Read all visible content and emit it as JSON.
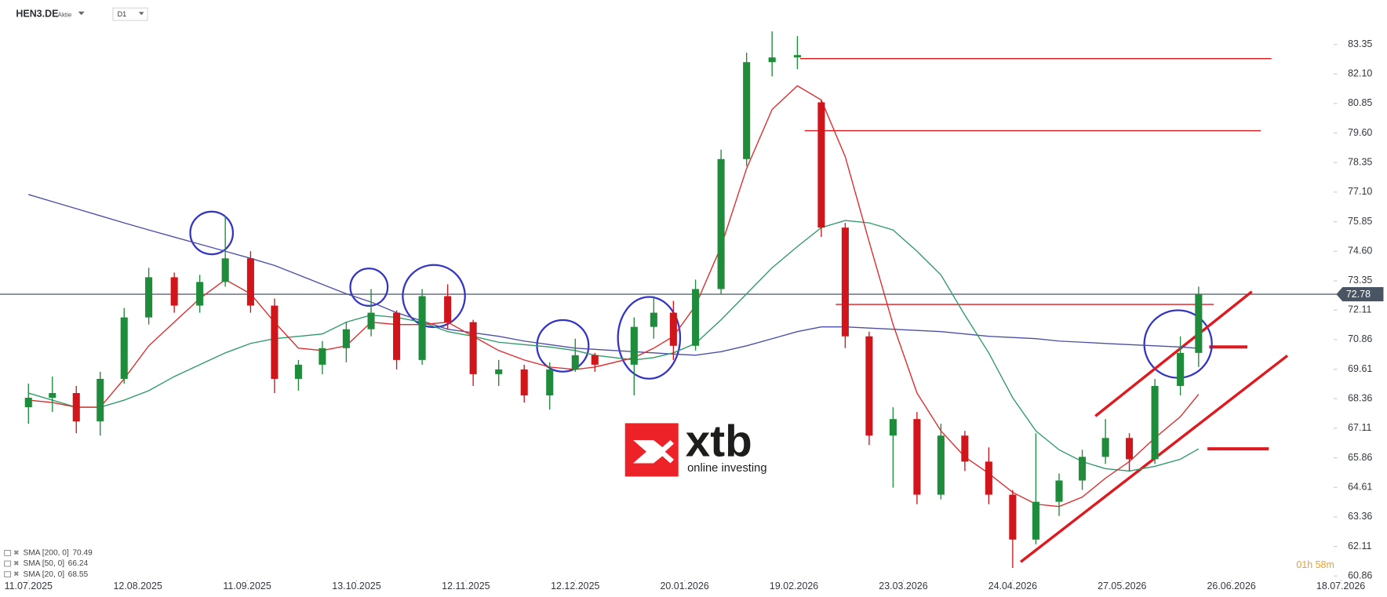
{
  "header": {
    "symbol": "HEN3.DE",
    "kind": "Aktie",
    "interval": "D1"
  },
  "logo": {
    "brand": "xtb",
    "tagline": "online investing"
  },
  "countdown": "01h 58m",
  "chart_data": {
    "type": "candlestick",
    "up_color": "#1e8c3a",
    "down_color": "#d0161b",
    "x": [
      "11.07.2025",
      "18.07.2025",
      "25.07.2025",
      "01.08.2025",
      "08.08.2025",
      "15.08.2025",
      "22.08.2025",
      "29.08.2025",
      "05.09.2025",
      "12.09.2025",
      "19.09.2025",
      "26.09.2025",
      "03.10.2025",
      "10.10.2025",
      "17.10.2025",
      "24.10.2025",
      "31.10.2025",
      "07.11.2025",
      "14.11.2025",
      "21.11.2025",
      "28.11.2025",
      "05.12.2025",
      "12.12.2025",
      "19.12.2025",
      "02.01.2026",
      "09.01.2026",
      "16.01.2026",
      "23.01.2026",
      "30.01.2026",
      "06.02.2026",
      "13.02.2026",
      "20.02.2026",
      "27.02.2026",
      "06.03.2026",
      "13.03.2026",
      "20.03.2026",
      "27.03.2026",
      "03.04.2026",
      "10.04.2026",
      "17.04.2026",
      "24.04.2026",
      "01.05.2026",
      "08.05.2026",
      "15.05.2026",
      "22.05.2026",
      "29.05.2026",
      "05.06.2026",
      "12.06.2026",
      "17.06.2026"
    ],
    "open": [
      68.0,
      68.4,
      68.6,
      67.4,
      69.2,
      71.8,
      73.5,
      72.3,
      73.3,
      74.3,
      72.3,
      69.2,
      69.8,
      70.5,
      71.3,
      72.0,
      70.0,
      72.7,
      71.6,
      69.4,
      69.6,
      68.5,
      69.6,
      70.2,
      69.8,
      71.4,
      72.0,
      70.6,
      73.0,
      78.5,
      82.6,
      82.8,
      80.9,
      75.6,
      71.0,
      66.8,
      67.5,
      64.3,
      66.8,
      65.7,
      64.3,
      62.4,
      64.0,
      64.9,
      65.9,
      66.7,
      65.8,
      68.9,
      70.3
    ],
    "high": [
      69.0,
      69.3,
      68.9,
      69.5,
      72.2,
      73.9,
      73.7,
      73.6,
      76.1,
      74.6,
      72.6,
      70.0,
      70.8,
      71.6,
      73.0,
      72.1,
      73.0,
      73.2,
      71.7,
      70.0,
      69.8,
      69.9,
      70.9,
      70.3,
      71.8,
      72.7,
      72.5,
      73.4,
      78.9,
      83.0,
      83.9,
      83.7,
      81.0,
      75.8,
      71.2,
      68.0,
      67.8,
      67.3,
      67.0,
      66.3,
      64.5,
      66.9,
      65.2,
      66.2,
      67.5,
      66.9,
      69.2,
      71.0,
      73.1
    ],
    "low": [
      67.3,
      67.8,
      66.9,
      66.8,
      69.0,
      71.5,
      72.0,
      72.0,
      73.1,
      72.0,
      68.6,
      68.7,
      69.4,
      69.9,
      71.0,
      69.6,
      69.8,
      71.3,
      68.9,
      68.9,
      68.2,
      67.9,
      69.5,
      69.5,
      68.5,
      70.9,
      70.0,
      70.4,
      72.8,
      78.2,
      82.0,
      82.3,
      75.2,
      70.5,
      66.4,
      64.6,
      63.9,
      64.1,
      65.3,
      63.9,
      61.2,
      62.2,
      63.4,
      64.5,
      65.6,
      65.3,
      65.6,
      68.5,
      69.7
    ],
    "close": [
      68.4,
      68.6,
      67.4,
      69.2,
      71.8,
      73.5,
      72.3,
      73.3,
      74.3,
      72.3,
      69.2,
      69.8,
      70.5,
      71.3,
      72.0,
      70.0,
      72.7,
      71.6,
      69.4,
      69.6,
      68.5,
      69.6,
      70.2,
      69.8,
      71.4,
      72.0,
      70.6,
      73.0,
      78.5,
      82.6,
      82.8,
      82.9,
      75.6,
      71.0,
      66.8,
      67.5,
      64.3,
      66.8,
      65.7,
      64.3,
      62.4,
      64.0,
      64.9,
      65.9,
      66.7,
      65.8,
      68.9,
      70.3,
      72.78
    ],
    "series": [
      {
        "name": "SMA [200, 0]",
        "color": "#4b4fa8",
        "values": [
          77.0,
          76.7,
          76.4,
          76.1,
          75.8,
          75.5,
          75.2,
          74.9,
          74.6,
          74.3,
          74.0,
          73.6,
          73.2,
          72.8,
          72.45,
          72.0,
          71.65,
          71.3,
          71.15,
          71.0,
          70.8,
          70.65,
          70.5,
          70.45,
          70.35,
          70.3,
          70.25,
          70.2,
          70.35,
          70.6,
          70.9,
          71.2,
          71.4,
          71.4,
          71.35,
          71.3,
          71.25,
          71.2,
          71.1,
          71.0,
          70.95,
          70.9,
          70.8,
          70.75,
          70.7,
          70.65,
          70.6,
          70.55,
          70.49
        ]
      },
      {
        "name": "SMA [50, 0]",
        "color": "#2e9a6a",
        "values": [
          68.6,
          68.3,
          68.0,
          68.0,
          68.3,
          68.7,
          69.3,
          69.8,
          70.3,
          70.7,
          70.9,
          71.0,
          71.1,
          71.6,
          71.9,
          71.8,
          71.6,
          71.2,
          71.0,
          70.75,
          70.65,
          70.55,
          70.4,
          70.2,
          70.0,
          70.1,
          70.3,
          70.7,
          71.7,
          72.8,
          73.9,
          74.8,
          75.6,
          75.9,
          75.8,
          75.5,
          74.6,
          73.6,
          71.9,
          70.3,
          68.4,
          67.0,
          66.2,
          65.7,
          65.4,
          65.3,
          65.5,
          65.8,
          66.24
        ]
      },
      {
        "name": "SMA [20, 0]",
        "color": "#e0292b",
        "values": [
          68.3,
          68.2,
          68.0,
          68.0,
          69.2,
          70.6,
          71.6,
          72.6,
          73.4,
          72.8,
          71.6,
          70.5,
          70.4,
          70.6,
          71.6,
          71.5,
          71.5,
          71.6,
          71.0,
          70.4,
          70.0,
          69.7,
          69.6,
          69.7,
          70.1,
          70.5,
          71.0,
          72.3,
          74.8,
          78.1,
          80.6,
          81.6,
          81.0,
          78.6,
          75.0,
          71.5,
          68.6,
          67.0,
          65.9,
          65.2,
          64.4,
          63.9,
          63.8,
          64.2,
          65.0,
          65.7,
          66.7,
          67.6,
          68.55
        ]
      }
    ],
    "last_price": 72.78,
    "levels": [
      82.75,
      79.7,
      72.35
    ],
    "targets": [
      70.55,
      66.24
    ],
    "ylim": [
      60.78,
      85.23
    ],
    "yticks": [
      83.35,
      {
        "value": 82.1,
        "label": "82.10"
      },
      80.85,
      {
        "value": 79.6,
        "label": "79.60"
      },
      78.35,
      {
        "value": 77.1,
        "label": "77.10"
      },
      75.85,
      {
        "value": 74.6,
        "label": "74.60"
      },
      73.35,
      72.11,
      70.86,
      69.61,
      68.36,
      67.11,
      65.86,
      64.61,
      63.36,
      62.11,
      60.86
    ],
    "xticks": [
      "11.07.2025",
      "12.08.2025",
      "11.09.2025",
      "13.10.2025",
      "12.11.2025",
      "12.12.2025",
      "20.01.2026",
      "19.02.2026",
      "23.03.2026",
      "24.04.2026",
      "27.05.2026",
      "26.06.2026",
      "18.07.2026"
    ],
    "grid": false
  }
}
